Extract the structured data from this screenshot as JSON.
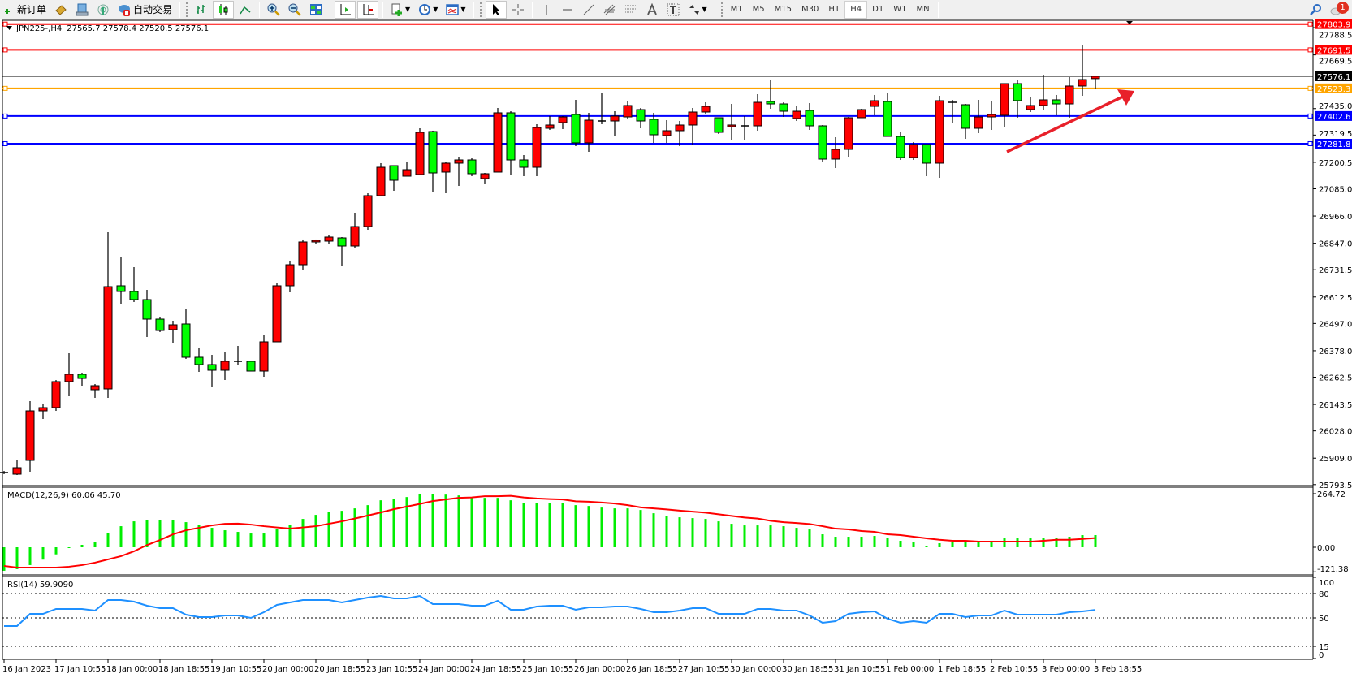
{
  "toolbar": {
    "new_order": "新订单",
    "auto_trading": "自动交易",
    "timeframes": [
      "M1",
      "M5",
      "M15",
      "M30",
      "H1",
      "H4",
      "D1",
      "W1",
      "MN"
    ],
    "active_timeframe": "H4",
    "notification_count": "1",
    "icons": [
      "new-order-icon",
      "market-watch-icon",
      "history-icon",
      "signal-icon",
      "auto-trading-icon",
      "bar-chart-icon",
      "candlestick-icon",
      "line-chart-icon",
      "zoom-in-icon",
      "zoom-out-icon",
      "tile-windows-icon",
      "autoscroll-icon",
      "chart-shift-icon",
      "indicators-icon",
      "periods-icon",
      "templates-icon",
      "cursor-icon",
      "crosshair-icon",
      "vertical-line-icon",
      "horizontal-line-icon",
      "trendline-icon",
      "equidistant-channel-icon",
      "fibonacci-icon",
      "text-icon",
      "text-label-icon",
      "arrows-icon",
      "search-icon",
      "notification-icon"
    ]
  },
  "chart": {
    "symbol_title": "JPN225-,H4",
    "ohlc_text": "27565.7 27578.4 27520.5 27576.1",
    "colors": {
      "bull": "#ff0000",
      "bear": "#00ff00",
      "macd_hist": "#00ee00",
      "signal": "#ff0000",
      "rsi": "#1e90ff"
    },
    "price_ticks": [
      "27788.5",
      "27669.5",
      "27435.0",
      "27319.5",
      "27200.5",
      "27085.0",
      "26966.0",
      "26847.0",
      "26731.5",
      "26612.5",
      "26497.0",
      "26378.0",
      "26262.5",
      "26143.5",
      "26028.0",
      "25909.0",
      "25793.5"
    ],
    "hlines": [
      {
        "price": "27803.9",
        "color": "#ff0000"
      },
      {
        "price": "27691.5",
        "color": "#ff0000"
      },
      {
        "price": "27576.1",
        "color": "#000000"
      },
      {
        "price": "27523.3",
        "color": "#ffa500"
      },
      {
        "price": "27402.6",
        "color": "#0000ff"
      },
      {
        "price": "27281.8",
        "color": "#0000ff"
      }
    ],
    "time_labels": [
      "16 Jan 2023",
      "17 Jan 10:55",
      "18 Jan 00:00",
      "18 Jan 18:55",
      "19 Jan 10:55",
      "20 Jan 00:00",
      "20 Jan 18:55",
      "23 Jan 10:55",
      "24 Jan 00:00",
      "24 Jan 18:55",
      "25 Jan 10:55",
      "26 Jan 00:00",
      "26 Jan 18:55",
      "27 Jan 10:55",
      "30 Jan 00:00",
      "30 Jan 18:55",
      "31 Jan 10:55",
      "1 Feb 00:00",
      "1 Feb 18:55",
      "2 Feb 10:55",
      "3 Feb 00:00",
      "3 Feb 18:55"
    ]
  },
  "macd": {
    "label": "MACD(12,26,9) 60.06 45.70",
    "axis": [
      "264.72",
      "0.00",
      "-121.38"
    ]
  },
  "rsi": {
    "label": "RSI(14) 59.9090",
    "axis": [
      "100",
      "80",
      "50",
      "15",
      "0"
    ]
  },
  "chart_data": {
    "type": "candlestick",
    "timeframe": "H4",
    "ylim": [
      25793.5,
      27803.9
    ],
    "candles_ohlc": [
      [
        25846.0,
        25853.1,
        25838.9,
        25846.0
      ],
      [
        25838.9,
        25899.2,
        25835.4,
        25867.3
      ],
      [
        25899.2,
        26158.0,
        25849.6,
        26115.4
      ],
      [
        26115.4,
        26147.4,
        26080.0,
        26129.6
      ],
      [
        26129.6,
        26250.1,
        26115.4,
        26243.1
      ],
      [
        26243.1,
        26367.1,
        26179.2,
        26275.0
      ],
      [
        26275.0,
        26282.1,
        26225.3,
        26257.2
      ],
      [
        26207.6,
        26232.4,
        26172.2,
        26225.3
      ],
      [
        26211.2,
        26895.3,
        26172.2,
        26657.8
      ],
      [
        26661.4,
        26789.0,
        26579.8,
        26636.6
      ],
      [
        26636.6,
        26742.9,
        26590.5,
        26601.1
      ],
      [
        26601.1,
        26643.6,
        26438.0,
        26516.0
      ],
      [
        26516.0,
        26526.7,
        26459.3,
        26466.4
      ],
      [
        26469.9,
        26508.9,
        26413.2,
        26491.2
      ],
      [
        26494.8,
        26558.6,
        26342.3,
        26349.4
      ],
      [
        26349.4,
        26388.4,
        26285.6,
        26317.5
      ],
      [
        26317.5,
        26360.0,
        26218.2,
        26292.7
      ],
      [
        26292.7,
        26374.2,
        26250.1,
        26331.7
      ],
      [
        26331.7,
        26399.0,
        26317.5,
        26331.7
      ],
      [
        26331.7,
        26335.2,
        26289.1,
        26289.1
      ],
      [
        26289.1,
        26448.7,
        26264.3,
        26416.8
      ],
      [
        26416.8,
        26672.0,
        26416.8,
        26661.4
      ],
      [
        26661.4,
        26771.3,
        26633.0,
        26753.5
      ],
      [
        26753.5,
        26863.5,
        26732.3,
        26852.8
      ],
      [
        26852.8,
        26863.5,
        26845.7,
        26859.9
      ],
      [
        26856.4,
        26884.7,
        26845.7,
        26874.1
      ],
      [
        26870.5,
        26874.1,
        26750.0,
        26835.1
      ],
      [
        26835.1,
        26980.4,
        26828.0,
        26920.1
      ],
      [
        26920.1,
        27065.5,
        26906.0,
        27054.9
      ],
      [
        27054.9,
        27196.7,
        27051.3,
        27178.9
      ],
      [
        27186.0,
        27186.0,
        27076.1,
        27122.2
      ],
      [
        27139.9,
        27203.8,
        27139.9,
        27168.3
      ],
      [
        27147.0,
        27349.1,
        27147.0,
        27331.4
      ],
      [
        27334.9,
        27338.5,
        27072.6,
        27154.1
      ],
      [
        27157.7,
        27200.2,
        27065.5,
        27196.7
      ],
      [
        27196.7,
        27225.0,
        27097.4,
        27210.8
      ],
      [
        27210.8,
        27221.5,
        27139.9,
        27150.6
      ],
      [
        27129.3,
        27154.1,
        27108.1,
        27150.6
      ],
      [
        27157.7,
        27437.7,
        27157.7,
        27416.5
      ],
      [
        27416.5,
        27423.5,
        27147.0,
        27210.8
      ],
      [
        27210.8,
        27232.1,
        27139.9,
        27178.9
      ],
      [
        27178.9,
        27366.8,
        27139.9,
        27352.6
      ],
      [
        27349.1,
        27402.3,
        27342.0,
        27363.3
      ],
      [
        27373.9,
        27402.3,
        27345.6,
        27398.7
      ],
      [
        27409.4,
        27473.2,
        27271.1,
        27285.3
      ],
      [
        27285.3,
        27416.5,
        27246.3,
        27384.5
      ],
      [
        27381.0,
        27505.1,
        27366.8,
        27381.0
      ],
      [
        27381.0,
        27423.5,
        27313.6,
        27402.3
      ],
      [
        27398.7,
        27466.1,
        27391.6,
        27448.4
      ],
      [
        27430.6,
        27437.7,
        27349.1,
        27381.0
      ],
      [
        27388.1,
        27416.5,
        27285.3,
        27320.7
      ],
      [
        27317.2,
        27384.5,
        27285.3,
        27338.5
      ],
      [
        27338.5,
        27381.0,
        27271.1,
        27363.3
      ],
      [
        27363.3,
        27437.7,
        27274.7,
        27420.0
      ],
      [
        27420.0,
        27462.5,
        27412.9,
        27444.8
      ],
      [
        27395.2,
        27395.2,
        27324.3,
        27331.4
      ],
      [
        27356.2,
        27455.4,
        27299.4,
        27363.3
      ],
      [
        27359.7,
        27402.3,
        27295.9,
        27359.7
      ],
      [
        27359.7,
        27498.0,
        27338.5,
        27462.5
      ],
      [
        27466.1,
        27558.2,
        27434.2,
        27455.4
      ],
      [
        27455.4,
        27462.5,
        27398.7,
        27423.5
      ],
      [
        27391.6,
        27444.8,
        27381.0,
        27423.5
      ],
      [
        27427.1,
        27459.0,
        27342.0,
        27359.7
      ],
      [
        27359.7,
        27363.3,
        27200.2,
        27214.4
      ],
      [
        27214.4,
        27310.1,
        27175.4,
        27256.9
      ],
      [
        27256.9,
        27398.7,
        27225.0,
        27395.2
      ],
      [
        27395.2,
        27434.2,
        27395.2,
        27430.6
      ],
      [
        27444.8,
        27494.5,
        27405.8,
        27469.6
      ],
      [
        27466.1,
        27505.1,
        27313.6,
        27313.6
      ],
      [
        27313.6,
        27331.4,
        27210.8,
        27221.5
      ],
      [
        27221.5,
        27288.8,
        27210.8,
        27278.2
      ],
      [
        27278.2,
        27278.2,
        27139.9,
        27196.7
      ],
      [
        27196.7,
        27490.9,
        27132.8,
        27469.6
      ],
      [
        27462.5,
        27473.2,
        27370.4,
        27462.5
      ],
      [
        27451.9,
        27455.4,
        27303.0,
        27349.1
      ],
      [
        27349.1,
        27473.2,
        27327.8,
        27398.7
      ],
      [
        27398.7,
        27466.1,
        27342.0,
        27409.4
      ],
      [
        27405.8,
        27544.1,
        27356.2,
        27544.1
      ],
      [
        27544.1,
        27558.2,
        27395.2,
        27469.6
      ],
      [
        27430.6,
        27483.8,
        27420.0,
        27448.4
      ],
      [
        27448.4,
        27583.1,
        27430.6,
        27473.2
      ],
      [
        27473.2,
        27494.5,
        27405.8,
        27455.4
      ],
      [
        27455.4,
        27572.4,
        27395.2,
        27533.5
      ],
      [
        27533.5,
        27714.2,
        27490.9,
        27561.8
      ],
      [
        27565.7,
        27578.4,
        27520.5,
        27576.1
      ]
    ],
    "macd_ylim": [
      -121.38,
      264.72
    ],
    "macd_histogram": [
      -116,
      -108,
      -88,
      -61,
      -35,
      -4,
      12,
      24,
      72,
      104,
      128,
      136,
      136,
      136,
      124,
      112,
      96,
      84,
      76,
      68,
      68,
      92,
      112,
      140,
      160,
      176,
      180,
      192,
      208,
      232,
      240,
      248,
      264.72,
      264,
      260,
      256,
      244,
      244,
      244,
      232,
      220,
      220,
      220,
      220,
      208,
      204,
      196,
      192,
      192,
      184,
      168,
      156,
      148,
      144,
      140,
      128,
      116,
      108,
      108,
      108,
      104,
      96,
      88,
      64,
      52,
      52,
      52,
      56,
      48,
      32,
      24,
      8,
      20,
      28,
      28,
      28,
      28,
      44,
      44,
      44,
      48,
      48,
      52,
      60,
      60.06
    ],
    "macd_signal": [
      -92,
      -100,
      -100,
      -100,
      -100,
      -96,
      -88,
      -76,
      -60,
      -44,
      -20,
      11,
      36,
      64,
      84,
      96,
      108,
      116,
      117,
      112,
      104,
      98,
      92,
      98,
      104,
      116,
      128,
      142,
      157,
      172,
      188,
      201,
      214,
      228,
      236,
      244,
      246,
      252,
      252,
      254,
      246,
      241,
      238,
      236,
      227,
      225,
      221,
      216,
      208,
      197,
      192,
      187,
      181,
      176,
      171,
      163,
      155,
      147,
      142,
      131,
      124,
      120,
      115,
      104,
      92,
      88,
      80,
      76,
      64,
      60,
      52,
      44,
      37,
      32,
      32,
      28,
      28,
      28,
      28,
      28,
      32,
      37,
      37,
      41,
      45.7
    ],
    "rsi_ylim": [
      0,
      100
    ],
    "rsi_levels": [
      80,
      50,
      15
    ],
    "rsi_values": [
      40,
      40,
      55,
      55,
      61,
      61,
      61,
      59,
      72,
      72,
      70,
      65,
      62,
      62,
      54,
      51,
      51,
      53,
      53,
      50,
      57,
      66,
      69,
      72,
      72,
      72,
      69,
      72,
      75,
      77,
      74,
      74,
      77,
      67,
      67,
      67,
      65,
      65,
      71,
      60,
      60,
      64,
      65,
      65,
      60,
      63,
      63,
      64,
      64,
      61,
      57,
      57,
      59,
      62,
      62,
      55,
      55,
      55,
      61,
      61,
      59,
      59,
      53,
      44,
      46,
      55,
      57,
      58,
      49,
      44,
      46,
      44,
      55,
      55,
      51,
      53,
      53,
      59,
      54,
      54,
      54,
      54,
      57,
      58,
      59.909
    ]
  }
}
